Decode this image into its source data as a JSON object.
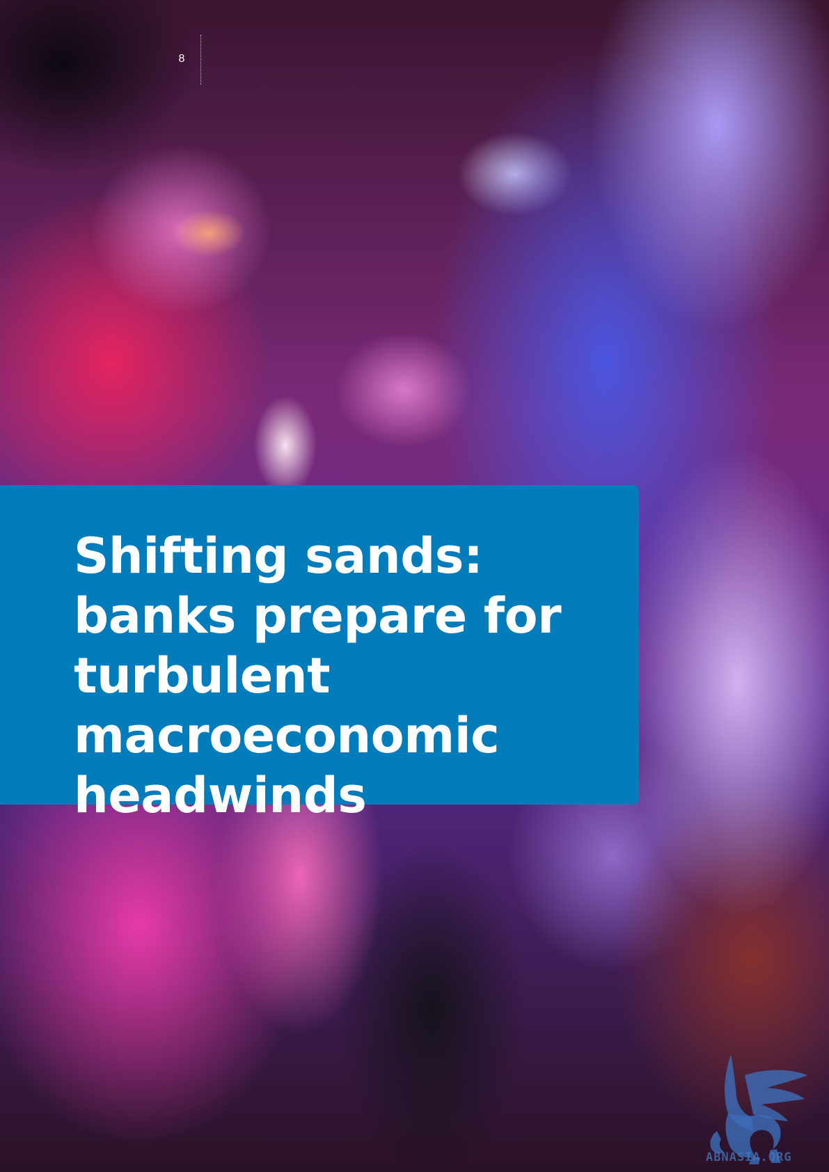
{
  "page": {
    "number": "8"
  },
  "section": {
    "title": "Shifting sands: banks prepare for turbulent macroeconomic headwinds",
    "panel_color": "#027cbb"
  },
  "background": {
    "description_colors": [
      "#eb235f",
      "#465aeb",
      "#afa0ff",
      "#f03caa",
      "#14121a"
    ]
  },
  "watermark": {
    "text": "ABNASIA.ORG",
    "icon": "griffin-logo-icon",
    "color": "#4678be"
  }
}
